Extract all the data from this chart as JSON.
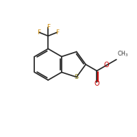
{
  "bg_color": "#ffffff",
  "bond_color": "#2a2a2a",
  "sulfur_color": "#7a7000",
  "oxygen_color": "#cc0000",
  "fluorine_color": "#cc8800",
  "bond_lw": 1.3,
  "figsize": [
    2.0,
    2.0
  ],
  "dpi": 100,
  "bl": 1.0,
  "xlim": [
    0,
    10
  ],
  "ylim": [
    0,
    10
  ]
}
